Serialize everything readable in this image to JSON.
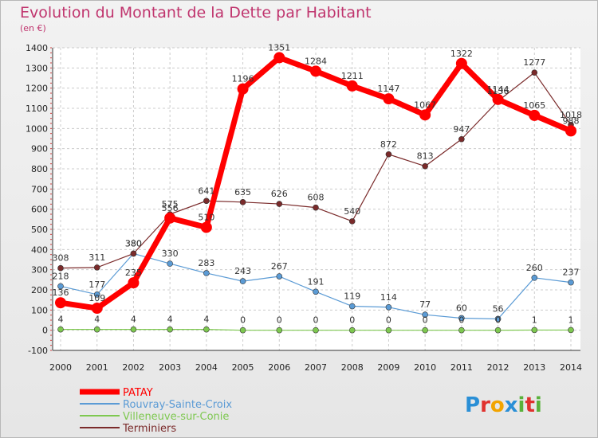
{
  "chart_data": {
    "type": "line",
    "title": "Evolution du Montant de la Dette par Habitant",
    "subtitle": "(en €)",
    "xlabel": "",
    "ylabel": "",
    "x": [
      "2000",
      "2001",
      "2002",
      "2003",
      "2004",
      "2005",
      "2006",
      "2007",
      "2008",
      "2009",
      "2010",
      "2011",
      "2012",
      "2013",
      "2014"
    ],
    "ylim": [
      -100,
      1400
    ],
    "yticks": [
      -100,
      0,
      100,
      200,
      300,
      400,
      500,
      600,
      700,
      800,
      900,
      1000,
      1100,
      1200,
      1300,
      1400
    ],
    "grid": true,
    "legend_position": "bottom-left",
    "series": [
      {
        "name": "PATAY",
        "color": "#ff0000",
        "values": [
          136,
          109,
          235,
          556,
          510,
          1196,
          1351,
          1284,
          1211,
          1147,
          1067,
          1322,
          1144,
          1065,
          988
        ]
      },
      {
        "name": "Rouvray-Sainte-Croix",
        "color": "#5b9bd5",
        "values": [
          218,
          177,
          380,
          330,
          283,
          243,
          267,
          191,
          119,
          114,
          77,
          60,
          56,
          260,
          237
        ]
      },
      {
        "name": "Villeneuve-sur-Conie",
        "color": "#7ec850",
        "values": [
          4,
          4,
          4,
          4,
          4,
          0,
          0,
          0,
          0,
          0,
          0,
          0,
          0,
          1,
          1
        ]
      },
      {
        "name": "Terminiers",
        "color": "#7a2a2a",
        "values": [
          308,
          311,
          380,
          575,
          641,
          635,
          626,
          608,
          540,
          872,
          813,
          947,
          1136,
          1277,
          1018
        ]
      }
    ]
  },
  "logo": {
    "text": "Proxiti",
    "letters": [
      {
        "ch": "P",
        "color": "#2a8fd6"
      },
      {
        "ch": "r",
        "color": "#e0312e"
      },
      {
        "ch": "o",
        "color": "#f2a400"
      },
      {
        "ch": "x",
        "color": "#2a8fd6"
      },
      {
        "ch": "i",
        "color": "#59b13a"
      },
      {
        "ch": "t",
        "color": "#e0312e"
      },
      {
        "ch": "i",
        "color": "#59b13a"
      }
    ]
  }
}
